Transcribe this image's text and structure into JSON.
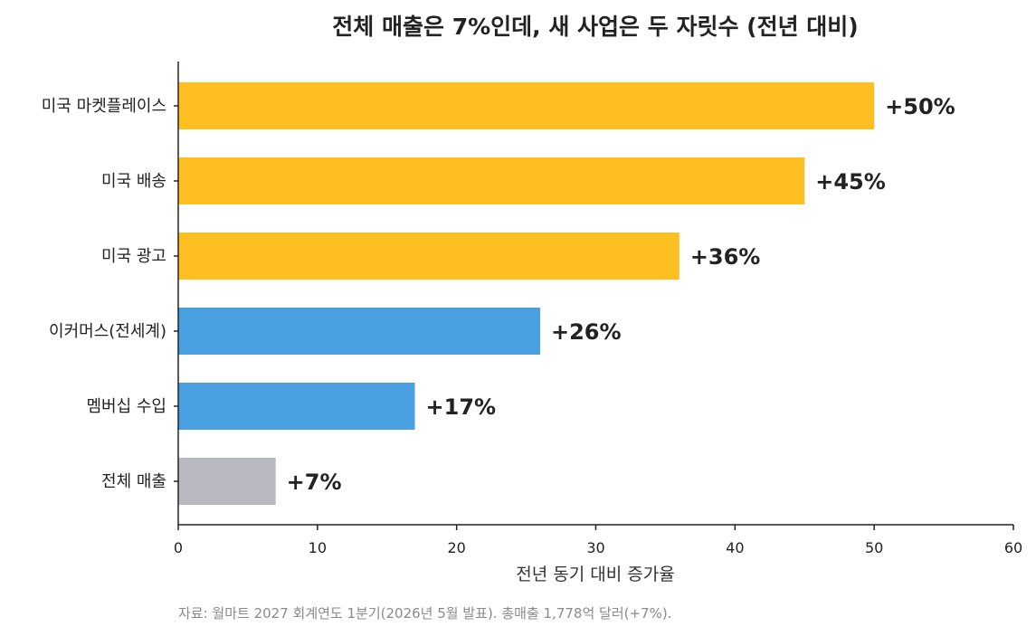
{
  "chart_data": {
    "type": "bar",
    "orientation": "horizontal",
    "title": "전체 매출은 7%인데, 새 사업은 두 자릿수 (전년 대비)",
    "xlabel": "전년 동기 대비 증가율",
    "ylabel": "",
    "xlim": [
      0,
      60
    ],
    "xticks": [
      0,
      10,
      20,
      30,
      40,
      50,
      60
    ],
    "grid": false,
    "categories": [
      "미국 마켓플레이스",
      "미국 배송",
      "미국 광고",
      "이커머스(전세계)",
      "멤버십 수입",
      "전체 매출"
    ],
    "values": [
      50,
      45,
      36,
      26,
      17,
      7
    ],
    "value_labels": [
      "+50%",
      "+45%",
      "+36%",
      "+26%",
      "+17%",
      "+7%"
    ],
    "colors": [
      "#fdc020",
      "#fdc020",
      "#fdc020",
      "#4a9fe0",
      "#4a9fe0",
      "#b9b9c1"
    ],
    "source_note": "자료: 월마트 2027 회계연도 1분기(2026년 5월 발표). 총매출 1,778억 달러(+7%)."
  }
}
